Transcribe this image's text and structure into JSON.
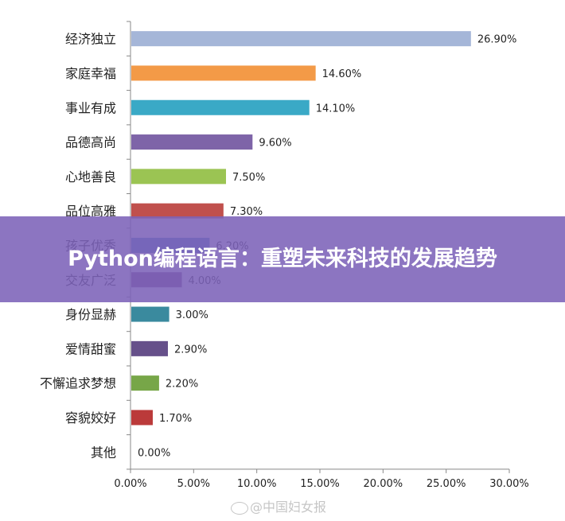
{
  "chart_data": {
    "type": "bar",
    "orientation": "horizontal",
    "categories": [
      "经济独立",
      "家庭幸福",
      "事业有成",
      "品德高尚",
      "心地善良",
      "品位高雅",
      "孩子优秀",
      "交友广泛",
      "身份显赫",
      "爱情甜蜜",
      "不懈追求梦想",
      "容貌姣好",
      "其他"
    ],
    "values": [
      26.9,
      14.6,
      14.1,
      9.6,
      7.5,
      7.3,
      6.2,
      4.0,
      3.0,
      2.9,
      2.2,
      1.7,
      0.0
    ],
    "data_labels": [
      "26.90%",
      "14.60%",
      "14.10%",
      "9.60%",
      "7.50%",
      "7.30%",
      "6.20%",
      "4.00%",
      "3.00%",
      "2.90%",
      "2.20%",
      "1.70%",
      "0.00%"
    ],
    "colors": [
      "#a5b6d8",
      "#f39a47",
      "#3aa9c6",
      "#7e64a8",
      "#9bc453",
      "#c0504d",
      "#4a80c0",
      "#7b4a82",
      "#3a8a9e",
      "#66508a",
      "#77a648",
      "#bb3a3a",
      "#cccccc"
    ],
    "xlim": [
      0,
      30
    ],
    "x_ticks": [
      "0.00%",
      "5.00%",
      "10.00%",
      "15.00%",
      "20.00%",
      "25.00%",
      "30.00%"
    ],
    "grid": false,
    "title": "",
    "xlabel": "",
    "ylabel": ""
  },
  "overlay": {
    "title": "Python编程语言：重塑未来科技的发展趋势"
  },
  "watermark": {
    "text": "@中国妇女报",
    "icon": "weibo-icon"
  }
}
